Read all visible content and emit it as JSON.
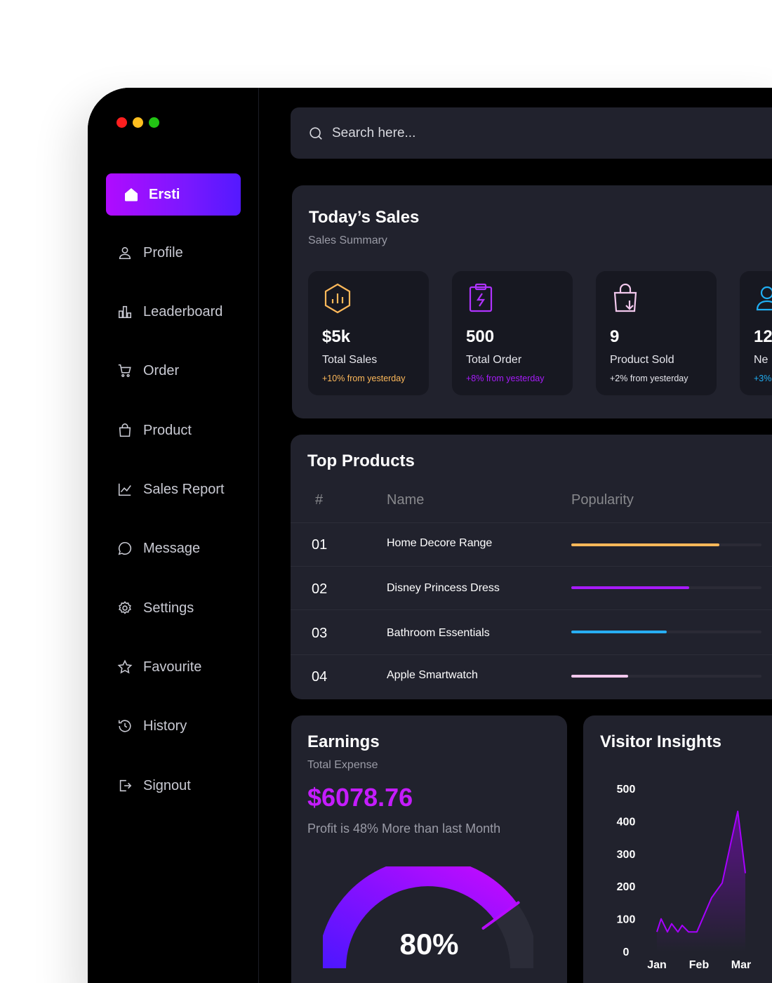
{
  "window_controls": {
    "colors": [
      "#ff1f1f",
      "#ffbf1f",
      "#22c414"
    ]
  },
  "sidebar": {
    "active": {
      "label": "Ersti",
      "icon": "home-icon"
    },
    "items": [
      {
        "label": "Profile",
        "icon": "user-icon"
      },
      {
        "label": "Leaderboard",
        "icon": "leaderboard-icon"
      },
      {
        "label": "Order",
        "icon": "cart-icon"
      },
      {
        "label": "Product",
        "icon": "bag-icon"
      },
      {
        "label": "Sales Report",
        "icon": "line-chart-icon"
      },
      {
        "label": "Message",
        "icon": "message-icon"
      },
      {
        "label": "Settings",
        "icon": "gear-icon"
      },
      {
        "label": "Favourite",
        "icon": "star-icon"
      },
      {
        "label": "History",
        "icon": "history-icon"
      },
      {
        "label": "Signout",
        "icon": "signout-icon"
      }
    ]
  },
  "search": {
    "placeholder": "Search here..."
  },
  "sales": {
    "title": "Today’s Sales",
    "subtitle": "Sales Summary",
    "stats": [
      {
        "value": "$5k",
        "label": "Total Sales",
        "change": "+10% from yesterday",
        "color": "#feb95a",
        "icon": "chart-hexagon-icon"
      },
      {
        "value": "500",
        "label": "Total Order",
        "change": "+8% from yesterday",
        "color": "#a9dfd8",
        "icon": "clipboard-bolt-icon"
      },
      {
        "value": "9",
        "label": "Product Sold",
        "change": "+2% from yesterday",
        "color": "#f2c8ed",
        "icon": "shopping-bag-icon"
      },
      {
        "value": "12",
        "label": "Ne",
        "change": "+3%",
        "color": "#20aef3",
        "icon": "user-add-icon"
      }
    ]
  },
  "top_products": {
    "title": "Top Products",
    "headers": [
      "#",
      "Name",
      "Popularity"
    ],
    "rows": [
      {
        "num": "01",
        "name": "Home Decore Range",
        "popularity": 0.78,
        "color": "#fcb859"
      },
      {
        "num": "02",
        "name": "Disney Princess Dress",
        "popularity": 0.62,
        "color": "#a71bfa"
      },
      {
        "num": "03",
        "name": "Bathroom Essentials",
        "popularity": 0.5,
        "color": "#28aef3"
      },
      {
        "num": "04",
        "name": "Apple Smartwatch",
        "popularity": 0.3,
        "color": "#f2c8ed"
      }
    ]
  },
  "earnings": {
    "title": "Earnings",
    "subtitle": "Total Expense",
    "amount": "$6078.76",
    "note": "Profit is 48% More than last Month",
    "gauge_value": "80%",
    "gauge_fraction": 0.8
  },
  "visitor": {
    "title": "Visitor Insights",
    "chart_data": {
      "type": "line",
      "y_ticks": [
        500,
        400,
        300,
        200,
        100,
        0
      ],
      "x_ticks": [
        "Jan",
        "Feb",
        "Mar"
      ],
      "ylim": [
        0,
        500
      ],
      "series": [
        {
          "color": "#a700ff",
          "points": [
            [
              0,
              60
            ],
            [
              0.1,
              100
            ],
            [
              0.25,
              60
            ],
            [
              0.35,
              85
            ],
            [
              0.5,
              60
            ],
            [
              0.6,
              80
            ],
            [
              0.75,
              60
            ],
            [
              0.95,
              60
            ],
            [
              1.3,
              165
            ],
            [
              1.55,
              210
            ],
            [
              1.75,
              330
            ],
            [
              1.92,
              430
            ],
            [
              2.1,
              240
            ]
          ]
        }
      ]
    }
  }
}
